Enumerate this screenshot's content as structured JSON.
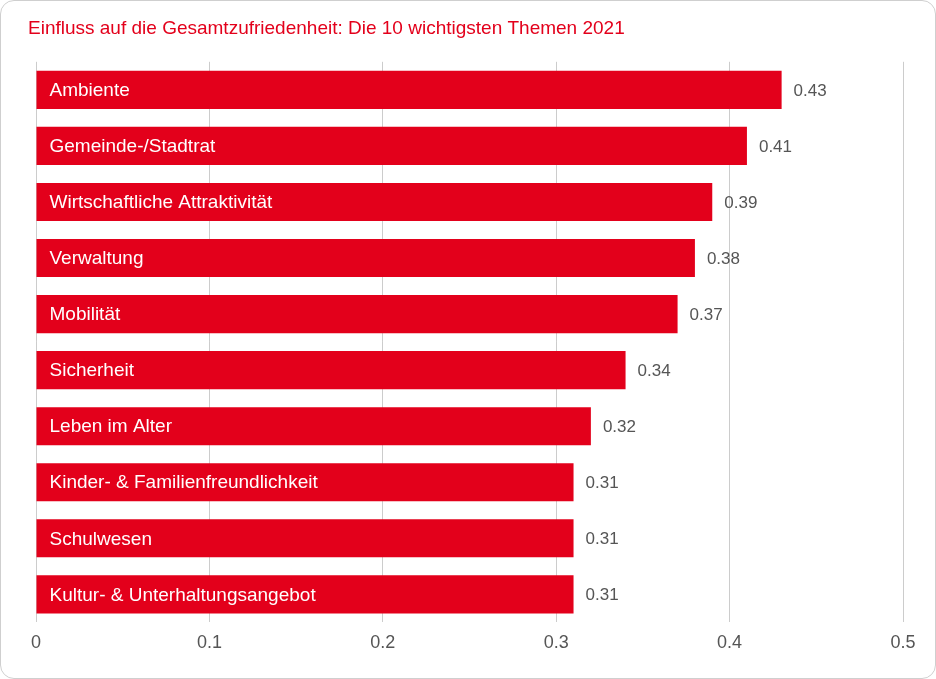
{
  "chart_data": {
    "type": "bar",
    "orientation": "horizontal",
    "title": "Einfluss auf die Gesamtzufriedenheit: Die 10 wichtigsten Themen 2021",
    "categories": [
      "Ambiente",
      "Gemeinde-/Stadtrat",
      "Wirtschaftliche Attraktivität",
      "Verwaltung",
      "Mobilität",
      "Sicherheit",
      "Leben im Alter",
      "Kinder- & Familienfreundlichkeit",
      "Schulwesen",
      "Kultur- & Unterhaltungsangebot"
    ],
    "values": [
      0.43,
      0.41,
      0.39,
      0.38,
      0.37,
      0.34,
      0.32,
      0.31,
      0.31,
      0.31
    ],
    "color": "#e3001b",
    "xlim": [
      0,
      0.5
    ],
    "xticks": [
      0,
      0.1,
      0.2,
      0.3,
      0.4,
      0.5
    ],
    "grid": true,
    "data_labels": true,
    "tick_labels": "x"
  }
}
